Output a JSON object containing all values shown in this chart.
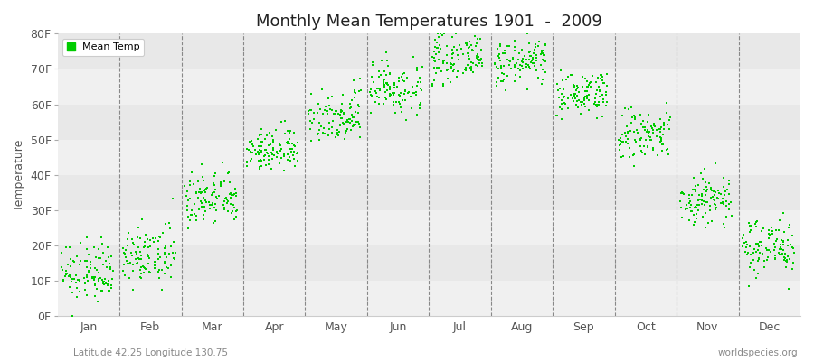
{
  "title": "Monthly Mean Temperatures 1901  -  2009",
  "ylabel": "Temperature",
  "yticks": [
    0,
    10,
    20,
    30,
    40,
    50,
    60,
    70,
    80
  ],
  "ytick_labels": [
    "0F",
    "10F",
    "20F",
    "30F",
    "40F",
    "50F",
    "60F",
    "70F",
    "80F"
  ],
  "ylim": [
    0,
    80
  ],
  "months": [
    "Jan",
    "Feb",
    "Mar",
    "Apr",
    "May",
    "Jun",
    "Jul",
    "Aug",
    "Sep",
    "Oct",
    "Nov",
    "Dec"
  ],
  "dot_color": "#00cc00",
  "plot_bg_color": "#f8f8f8",
  "band_color_1": "#f0f0f0",
  "band_color_2": "#e8e8e8",
  "fig_bg_color": "#ffffff",
  "subtitle_left": "Latitude 42.25 Longitude 130.75",
  "subtitle_right": "worldspecies.org",
  "legend_label": "Mean Temp",
  "month_means": [
    12,
    17,
    33,
    47,
    57,
    65,
    73,
    72,
    63,
    51,
    33,
    20
  ],
  "month_stds": [
    4,
    4,
    4,
    3,
    4,
    4,
    3,
    3,
    3,
    4,
    4,
    4
  ],
  "n_points": 109,
  "year_start": 1901,
  "year_end": 2009
}
